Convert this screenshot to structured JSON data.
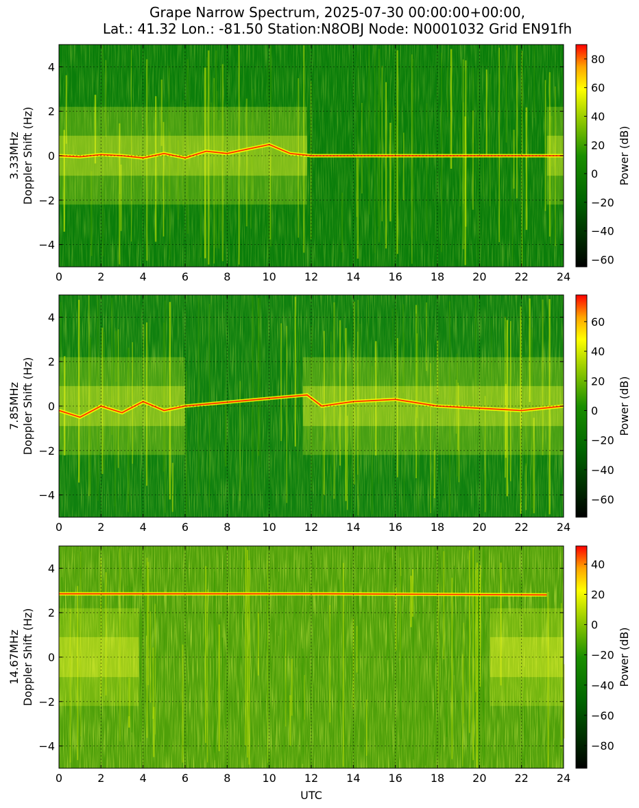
{
  "chart_data": {
    "type": "heatmap",
    "title_lines": [
      "Grape Narrow Spectrum, 2025-07-30 00:00:00+00:00,",
      "Lat.: 41.32 Lon.: -81.50 Station:N8OBJ Node: N0001032 Grid EN91fh"
    ],
    "xlabel": "UTC",
    "xlim": [
      0,
      24
    ],
    "xticks": [
      "0",
      "2",
      "4",
      "6",
      "8",
      "10",
      "12",
      "14",
      "16",
      "18",
      "20",
      "22",
      "24"
    ],
    "grid": true,
    "colormap": [
      "#000000",
      "#006400",
      "#008000",
      "#7fbf00",
      "#ffff00",
      "#ffa500",
      "#ff0000"
    ],
    "panels": [
      {
        "ylabel_lines": [
          "3.33MHz",
          "Doppler Shift (Hz)"
        ],
        "ylim": [
          -5,
          5
        ],
        "yticks": [
          "4",
          "2",
          "0",
          "−2",
          "−4"
        ],
        "colorbar": {
          "label": "Power (dB)",
          "range": [
            -65,
            90
          ],
          "ticks": [
            "80",
            "60",
            "40",
            "20",
            "0",
            "−20",
            "−40",
            "−60"
          ]
        },
        "background": "#0a7d0a",
        "speckle_level": 0.5,
        "active_spans": [
          [
            0,
            11.8
          ],
          [
            23.2,
            24
          ]
        ],
        "carrier_trace": [
          [
            0,
            0
          ],
          [
            1,
            -0.05
          ],
          [
            2,
            0.05
          ],
          [
            3,
            0
          ],
          [
            4,
            -0.1
          ],
          [
            5,
            0.1
          ],
          [
            6,
            -0.1
          ],
          [
            7,
            0.2
          ],
          [
            8,
            0.1
          ],
          [
            9,
            0.3
          ],
          [
            10,
            0.5
          ],
          [
            11,
            0.1
          ],
          [
            12,
            0
          ],
          [
            24,
            0
          ]
        ]
      },
      {
        "ylabel_lines": [
          "7.85MHz",
          "Doppler Shift (Hz)"
        ],
        "ylim": [
          -5,
          5
        ],
        "yticks": [
          "4",
          "2",
          "0",
          "−2",
          "−4"
        ],
        "colorbar": {
          "label": "Power (dB)",
          "range": [
            -72,
            78
          ],
          "ticks": [
            "60",
            "40",
            "20",
            "0",
            "−20",
            "−40",
            "−60"
          ]
        },
        "background": "#0f800f",
        "speckle_level": 0.6,
        "active_spans": [
          [
            0,
            6
          ],
          [
            11.6,
            24
          ]
        ],
        "carrier_trace": [
          [
            0,
            -0.2
          ],
          [
            1,
            -0.5
          ],
          [
            2,
            0
          ],
          [
            3,
            -0.3
          ],
          [
            4,
            0.2
          ],
          [
            5,
            -0.2
          ],
          [
            6,
            0
          ],
          [
            11.8,
            0.5
          ],
          [
            12.5,
            0
          ],
          [
            14,
            0.2
          ],
          [
            16,
            0.3
          ],
          [
            18,
            0
          ],
          [
            20,
            -0.1
          ],
          [
            22,
            -0.2
          ],
          [
            24,
            0
          ]
        ]
      },
      {
        "ylabel_lines": [
          "14.67MHz",
          "Doppler Shift (Hz)"
        ],
        "ylim": [
          -5,
          5
        ],
        "yticks": [
          "4",
          "2",
          "0",
          "−2",
          "−4"
        ],
        "colorbar": {
          "label": "Power (dB)",
          "range": [
            -95,
            52
          ],
          "ticks": [
            "40",
            "20",
            "0",
            "−20",
            "−40",
            "−60",
            "−80"
          ]
        },
        "background": "#4fa00a",
        "speckle_level": 0.9,
        "active_spans": [
          [
            0,
            3.8
          ],
          [
            20.5,
            24
          ]
        ],
        "carrier_trace": [
          [
            0,
            2.85
          ],
          [
            2.8,
            2.85
          ],
          [
            12.8,
            2.85
          ],
          [
            23.2,
            2.8
          ]
        ]
      }
    ]
  }
}
